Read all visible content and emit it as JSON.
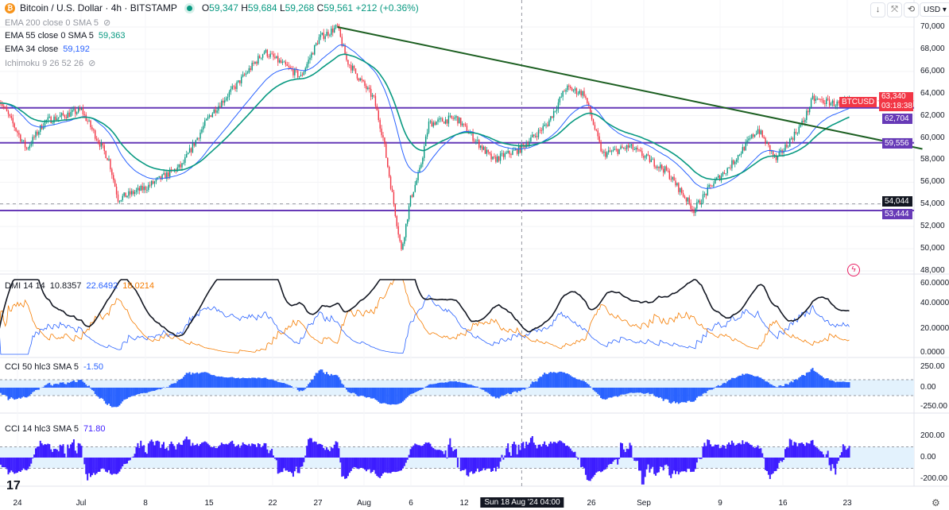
{
  "header": {
    "title": "Bitcoin / U.S. Dollar · 4h · BITSTAMP",
    "coin_icon": "bitcoin-icon",
    "ohlc": {
      "o_label": "O",
      "o": "59,347",
      "h_label": "H",
      "h": "59,684",
      "l_label": "L",
      "l": "59,268",
      "c_label": "C",
      "c": "59,561",
      "change": "+212 (+0.36%)"
    },
    "buttons": {
      "scroll_down": "↓",
      "collapse": "⤧",
      "loop": "⟲",
      "currency": "USD"
    }
  },
  "indicators": {
    "ema200": {
      "label": "EMA 200 close 0 SMA 5",
      "hidden": true
    },
    "ema55": {
      "label": "EMA 55 close 0 SMA 5",
      "value": "59,363"
    },
    "ema34": {
      "label": "EMA 34 close",
      "value": "59,192"
    },
    "ichimoku": {
      "label": "Ichimoku 9 26 52 26",
      "hidden": true
    },
    "dmi": {
      "label": "DMI 14 14",
      "adx": "10.8357",
      "plus": "22.6492",
      "minus": "18.0214"
    },
    "cci50": {
      "label": "CCI 50 hlc3 SMA 5",
      "value": "-1.50"
    },
    "cci14": {
      "label": "CCI 14 hlc3 SMA 5",
      "value": "71.80"
    }
  },
  "price_axis": {
    "ticks": [
      "70,000",
      "68,000",
      "66,000",
      "64,000",
      "62,000",
      "60,000",
      "58,000",
      "56,000",
      "54,000",
      "52,000",
      "50,000",
      "48,000"
    ],
    "symbol_tag": "BTCUSD",
    "last_price": "63,340",
    "countdown": "03:18:38",
    "level_labels": [
      "62,704",
      "59,556",
      "53,444"
    ],
    "crosshair_price": "54,044"
  },
  "dmi_axis": [
    "60.0000",
    "40.0000",
    "20.0000",
    "0.0000"
  ],
  "cci50_axis": [
    "250.00",
    "0.00",
    "-250.00"
  ],
  "cci14_axis": [
    "200.00",
    "0.00",
    "-200.00"
  ],
  "time_axis": {
    "ticks": [
      "24",
      "Jul",
      "8",
      "15",
      "22",
      "27",
      "Aug",
      "6",
      "12",
      "26",
      "Sep",
      "9",
      "16",
      "23"
    ],
    "crosshair": "Sun 18 Aug '24  04:00"
  },
  "colors": {
    "up": "#089981",
    "down": "#f23645",
    "ema55": "#089981",
    "ema34": "#2962ff",
    "levels": "#673ab7",
    "trendline": "#1b5e20",
    "adx": "#131722",
    "plus_di": "#2962ff",
    "minus_di": "#f57c00",
    "cci50": "#2962ff",
    "cci14": "#3d1dff"
  },
  "chart_data": {
    "type": "candlestick",
    "symbol": "BTCUSD",
    "interval": "4h",
    "price_range": [
      48000,
      70000
    ],
    "price_path": [
      [
        "2024-06-22",
        63500
      ],
      [
        "2024-06-25",
        59000
      ],
      [
        "2024-06-27",
        61500
      ],
      [
        "2024-07-01",
        62500
      ],
      [
        "2024-07-04",
        58000
      ],
      [
        "2024-07-05",
        54500
      ],
      [
        "2024-07-08",
        55500
      ],
      [
        "2024-07-12",
        57500
      ],
      [
        "2024-07-15",
        62000
      ],
      [
        "2024-07-18",
        64800
      ],
      [
        "2024-07-21",
        67800
      ],
      [
        "2024-07-25",
        65500
      ],
      [
        "2024-07-27",
        69000
      ],
      [
        "2024-07-29",
        70000
      ],
      [
        "2024-07-30",
        67000
      ],
      [
        "2024-08-02",
        63500
      ],
      [
        "2024-08-03",
        60000
      ],
      [
        "2024-08-05",
        49800
      ],
      [
        "2024-08-06",
        54500
      ],
      [
        "2024-08-07",
        57000
      ],
      [
        "2024-08-08",
        61300
      ],
      [
        "2024-08-11",
        61800
      ],
      [
        "2024-08-15",
        58000
      ],
      [
        "2024-08-18",
        59000
      ],
      [
        "2024-08-21",
        61300
      ],
      [
        "2024-08-23",
        64500
      ],
      [
        "2024-08-25",
        64000
      ],
      [
        "2024-08-27",
        58500
      ],
      [
        "2024-08-30",
        59200
      ],
      [
        "2024-09-03",
        57000
      ],
      [
        "2024-09-06",
        53500
      ],
      [
        "2024-09-08",
        55800
      ],
      [
        "2024-09-10",
        57500
      ],
      [
        "2024-09-13",
        60800
      ],
      [
        "2024-09-15",
        58000
      ],
      [
        "2024-09-18",
        61500
      ],
      [
        "2024-09-19",
        63500
      ],
      [
        "2024-09-22",
        63000
      ],
      [
        "2024-09-23",
        63340
      ]
    ],
    "horizontal_levels": [
      62704,
      59556,
      53444
    ],
    "crosshair_level": 54044,
    "trendline": [
      [
        "2024-07-29",
        70000
      ],
      [
        "2024-10-01",
        59000
      ]
    ],
    "crosshair_time": "2024-08-18T04:00"
  }
}
